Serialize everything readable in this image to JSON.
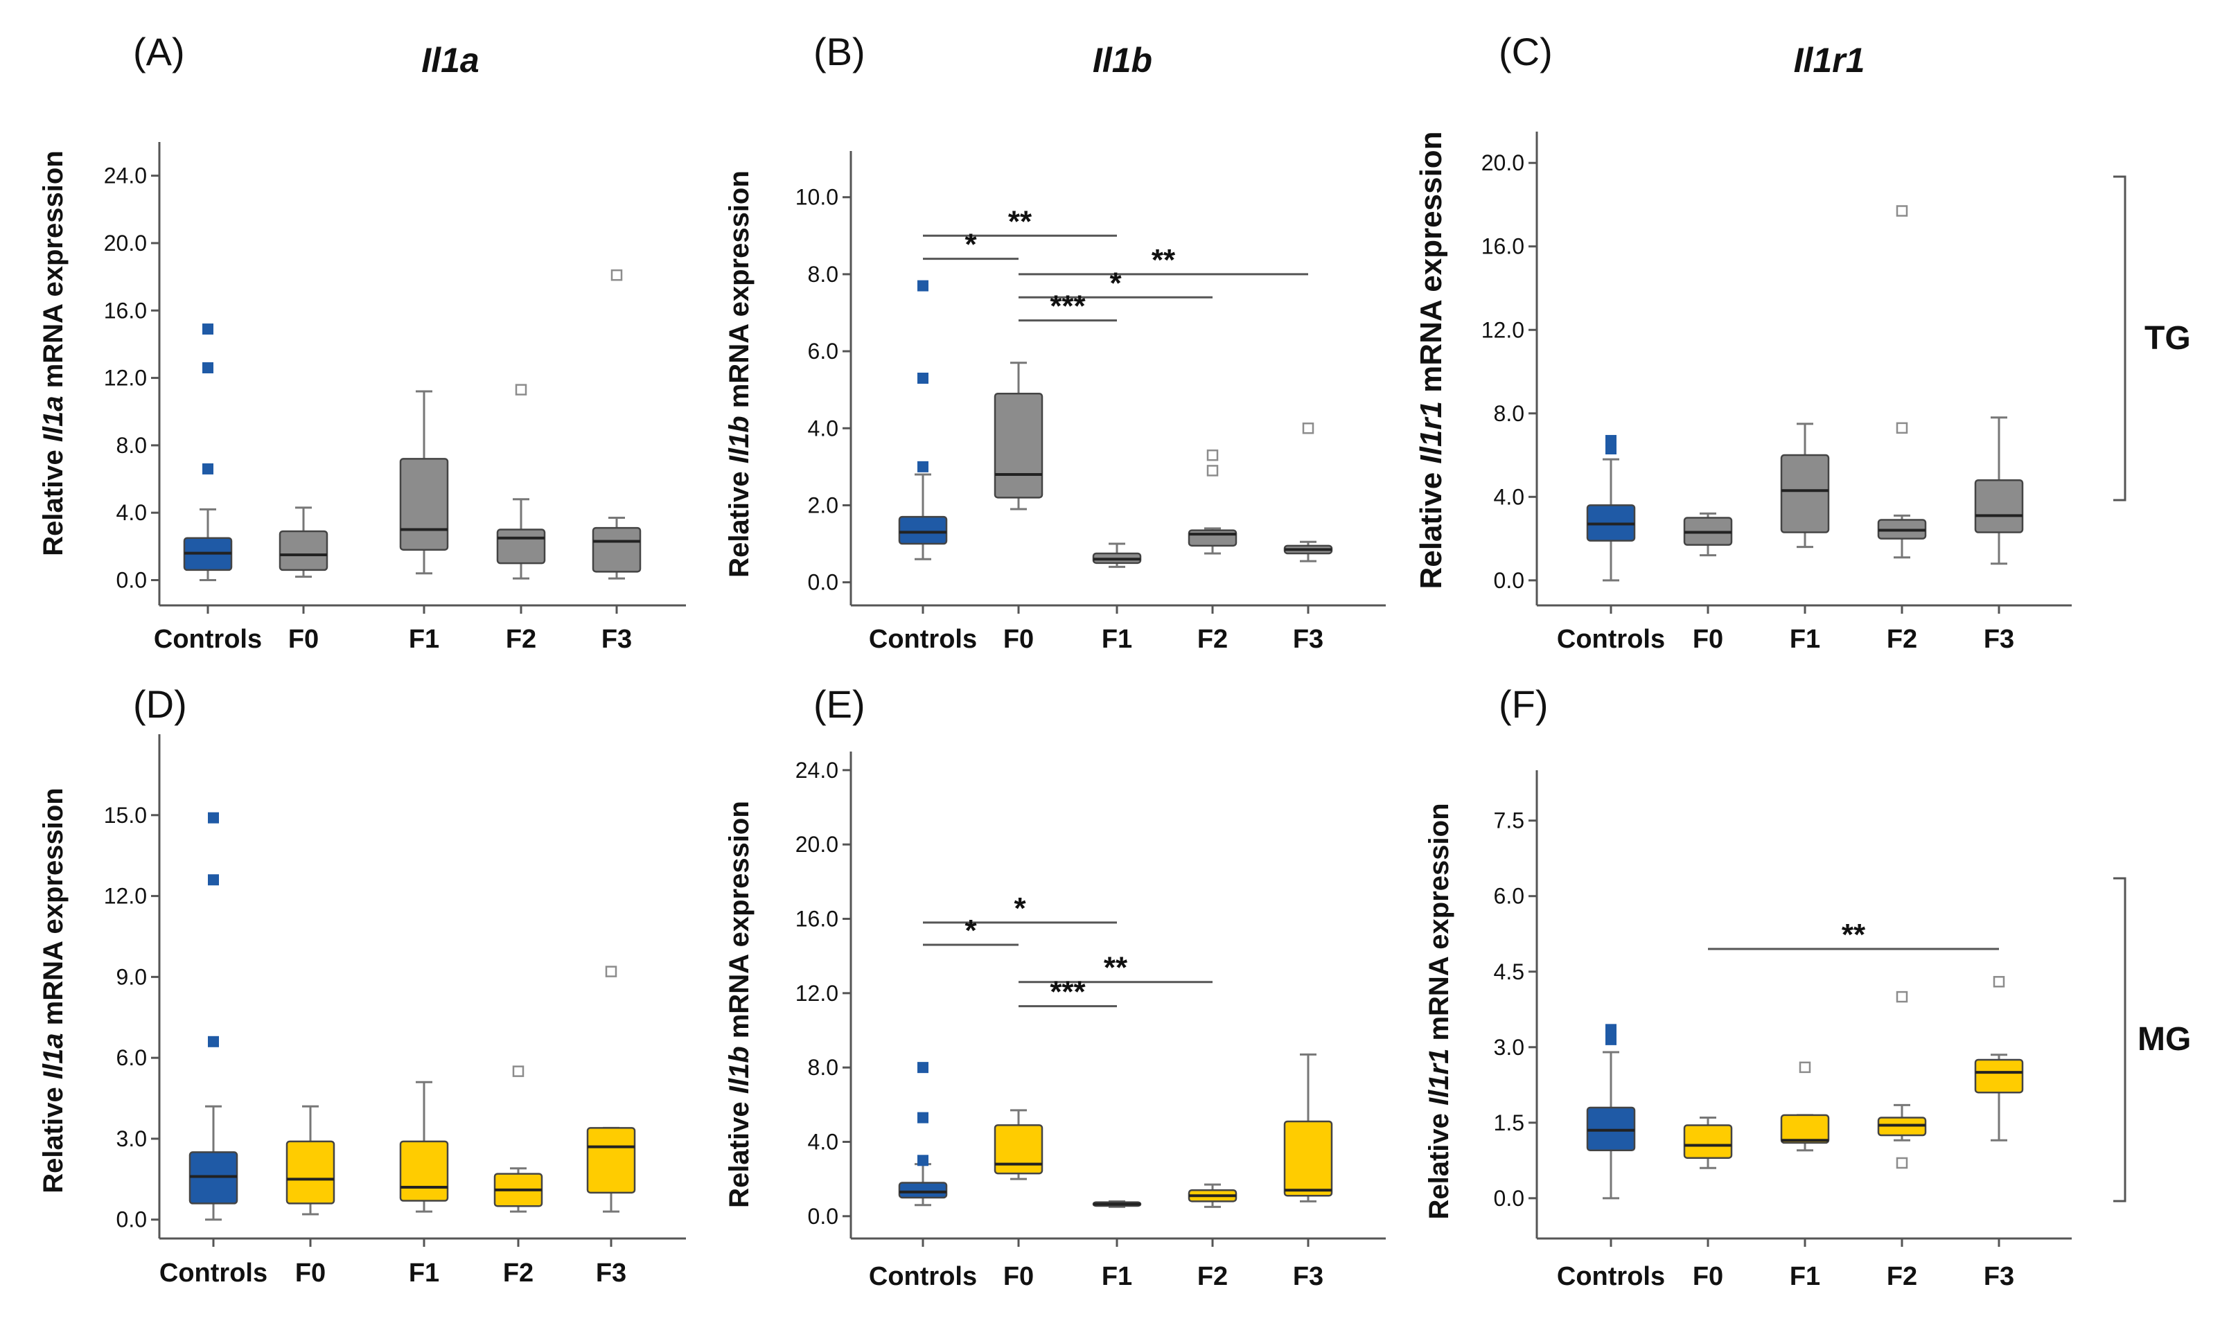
{
  "panels": [
    {
      "label": "(A)",
      "title": "Il1a"
    },
    {
      "label": "(B)",
      "title": "Il1b"
    },
    {
      "label": "(C)",
      "title": "Il1r1"
    },
    {
      "label": "(D)",
      "title": ""
    },
    {
      "label": "(E)",
      "title": ""
    },
    {
      "label": "(F)",
      "title": ""
    }
  ],
  "tissue_labels": {
    "tg": "TG",
    "mg": "MG"
  },
  "colors": {
    "control": "#1f5aa6",
    "tg": "#8c8c8c",
    "mg": "#ffcc00",
    "line": "#555555"
  },
  "chart_data": [
    {
      "type": "boxplot",
      "panel": "A",
      "tissue": "TG",
      "title": "Il1a",
      "ylabel_pre": "Relative ",
      "ylabel_gene": "Il1a",
      "ylabel_post": " mRNA expression",
      "ylim": [
        -1.5,
        26
      ],
      "ticks": [
        0,
        4,
        8,
        12,
        16,
        20,
        24
      ],
      "tick_labels": [
        "0.0",
        "4.0",
        "8.0",
        "12.0",
        "16.0",
        "20.0",
        "24.0"
      ],
      "categories": [
        "Controls",
        "F0",
        "F1",
        "F2",
        "F3"
      ],
      "boxes": [
        {
          "group": "Controls",
          "min": 0,
          "q1": 0.6,
          "median": 1.6,
          "q3": 2.5,
          "max": 4.2,
          "outliers": [
            6.6,
            12.6,
            14.9
          ]
        },
        {
          "group": "F0",
          "min": 0.2,
          "q1": 0.6,
          "median": 1.5,
          "q3": 2.9,
          "max": 4.3,
          "outliers": []
        },
        {
          "group": "F1",
          "min": 0.4,
          "q1": 1.8,
          "median": 3.0,
          "q3": 7.2,
          "max": 11.2,
          "outliers": []
        },
        {
          "group": "F2",
          "min": 0.1,
          "q1": 1.0,
          "median": 2.5,
          "q3": 3.0,
          "max": 4.8,
          "outliers": [
            11.3
          ]
        },
        {
          "group": "F3",
          "min": 0.1,
          "q1": 0.5,
          "median": 2.3,
          "q3": 3.1,
          "max": 3.7,
          "outliers": [
            18.1
          ]
        }
      ],
      "brackets": []
    },
    {
      "type": "boxplot",
      "panel": "B",
      "tissue": "TG",
      "title": "Il1b",
      "ylabel_pre": "Relative ",
      "ylabel_gene": "Il1b",
      "ylabel_post": " mRNA expression",
      "ylim": [
        -0.6,
        11.2
      ],
      "ticks": [
        0,
        2,
        4,
        6,
        8,
        10
      ],
      "tick_labels": [
        "0.0",
        "2.0",
        "4.0",
        "6.0",
        "8.0",
        "10.0"
      ],
      "categories": [
        "Controls",
        "F0",
        "F1",
        "F2",
        "F3"
      ],
      "boxes": [
        {
          "group": "Controls",
          "min": 0.6,
          "q1": 1.0,
          "median": 1.3,
          "q3": 1.7,
          "max": 2.8,
          "outliers": [
            3.0,
            5.3,
            7.7
          ]
        },
        {
          "group": "F0",
          "min": 1.9,
          "q1": 2.2,
          "median": 2.8,
          "q3": 4.9,
          "max": 5.7,
          "outliers": []
        },
        {
          "group": "F1",
          "min": 0.4,
          "q1": 0.5,
          "median": 0.6,
          "q3": 0.75,
          "max": 1.0,
          "outliers": []
        },
        {
          "group": "F2",
          "min": 0.75,
          "q1": 0.95,
          "median": 1.25,
          "q3": 1.35,
          "max": 1.4,
          "outliers": [
            2.9,
            3.3
          ]
        },
        {
          "group": "F3",
          "min": 0.55,
          "q1": 0.75,
          "median": 0.85,
          "q3": 0.95,
          "max": 1.05,
          "outliers": [
            4.0
          ]
        }
      ],
      "brackets": [
        {
          "from": 0,
          "to": 2,
          "y": 9.0,
          "label": "**"
        },
        {
          "from": 0,
          "to": 1,
          "y": 8.4,
          "label": "*"
        },
        {
          "from": 1,
          "to": 4,
          "y": 8.0,
          "label": "**"
        },
        {
          "from": 1,
          "to": 3,
          "y": 7.4,
          "label": "*"
        },
        {
          "from": 1,
          "to": 2,
          "y": 6.8,
          "label": "***"
        }
      ]
    },
    {
      "type": "boxplot",
      "panel": "C",
      "tissue": "TG",
      "title": "Il1r1",
      "ylabel_pre": "Relative ",
      "ylabel_gene": "Il1r1",
      "ylabel_post": " mRNA expression",
      "ylim": [
        -1.2,
        21.5
      ],
      "ticks": [
        0,
        4,
        8,
        12,
        16,
        20
      ],
      "tick_labels": [
        "0.0",
        "4.0",
        "8.0",
        "12.0",
        "16.0",
        "20.0"
      ],
      "categories": [
        "Controls",
        "F0",
        "F1",
        "F2",
        "F3"
      ],
      "boxes": [
        {
          "group": "Controls",
          "min": 0,
          "q1": 1.9,
          "median": 2.7,
          "q3": 3.6,
          "max": 5.8,
          "outliers": [
            6.3,
            6.7
          ]
        },
        {
          "group": "F0",
          "min": 1.2,
          "q1": 1.7,
          "median": 2.3,
          "q3": 3.0,
          "max": 3.2,
          "outliers": []
        },
        {
          "group": "F1",
          "min": 1.6,
          "q1": 2.3,
          "median": 4.3,
          "q3": 6.0,
          "max": 7.5,
          "outliers": []
        },
        {
          "group": "F2",
          "min": 1.1,
          "q1": 2.0,
          "median": 2.4,
          "q3": 2.9,
          "max": 3.1,
          "outliers": [
            7.3,
            17.7
          ]
        },
        {
          "group": "F3",
          "min": 0.8,
          "q1": 2.3,
          "median": 3.1,
          "q3": 4.8,
          "max": 7.8,
          "outliers": []
        }
      ],
      "brackets": []
    },
    {
      "type": "boxplot",
      "panel": "D",
      "tissue": "MG",
      "title": "",
      "ylabel_pre": "Relative ",
      "ylabel_gene": "Il1a",
      "ylabel_post": " mRNA expression",
      "ylim": [
        -0.7,
        18
      ],
      "ticks": [
        0,
        3,
        6,
        9,
        12,
        15
      ],
      "tick_labels": [
        "0.0",
        "3.0",
        "6.0",
        "9.0",
        "12.0",
        "15.0"
      ],
      "categories": [
        "Controls",
        "F0",
        "F1",
        "F2",
        "F3"
      ],
      "boxes": [
        {
          "group": "Controls",
          "min": 0,
          "q1": 0.6,
          "median": 1.6,
          "q3": 2.5,
          "max": 4.2,
          "outliers": [
            6.6,
            12.6,
            14.9
          ]
        },
        {
          "group": "F0",
          "min": 0.2,
          "q1": 0.6,
          "median": 1.5,
          "q3": 2.9,
          "max": 4.2,
          "outliers": []
        },
        {
          "group": "F1",
          "min": 0.3,
          "q1": 0.7,
          "median": 1.2,
          "q3": 2.9,
          "max": 5.1,
          "outliers": []
        },
        {
          "group": "F2",
          "min": 0.3,
          "q1": 0.5,
          "median": 1.1,
          "q3": 1.7,
          "max": 1.9,
          "outliers": [
            5.5
          ]
        },
        {
          "group": "F3",
          "min": 0.3,
          "q1": 1.0,
          "median": 2.7,
          "q3": 3.4,
          "max": 3.4,
          "outliers": [
            9.2
          ]
        }
      ],
      "brackets": []
    },
    {
      "type": "boxplot",
      "panel": "E",
      "tissue": "MG",
      "title": "",
      "ylabel_pre": "Relative ",
      "ylabel_gene": "Il1b",
      "ylabel_post": " mRNA expression",
      "ylim": [
        -1.2,
        25
      ],
      "ticks": [
        0,
        4,
        8,
        12,
        16,
        20,
        24
      ],
      "tick_labels": [
        "0.0",
        "4.0",
        "8.0",
        "12.0",
        "16.0",
        "20.0",
        "24.0"
      ],
      "categories": [
        "Controls",
        "F0",
        "F1",
        "F2",
        "F3"
      ],
      "boxes": [
        {
          "group": "Controls",
          "min": 0.6,
          "q1": 1.0,
          "median": 1.3,
          "q3": 1.8,
          "max": 2.8,
          "outliers": [
            3.0,
            5.3,
            8.0
          ]
        },
        {
          "group": "F0",
          "min": 2.0,
          "q1": 2.3,
          "median": 2.8,
          "q3": 4.9,
          "max": 5.7,
          "outliers": []
        },
        {
          "group": "F1",
          "min": 0.5,
          "q1": 0.55,
          "median": 0.65,
          "q3": 0.75,
          "max": 0.8,
          "outliers": []
        },
        {
          "group": "F2",
          "min": 0.5,
          "q1": 0.8,
          "median": 1.1,
          "q3": 1.4,
          "max": 1.7,
          "outliers": []
        },
        {
          "group": "F3",
          "min": 0.8,
          "q1": 1.1,
          "median": 1.4,
          "q3": 5.1,
          "max": 8.7,
          "outliers": []
        }
      ],
      "brackets": [
        {
          "from": 0,
          "to": 2,
          "y": 15.8,
          "label": "*"
        },
        {
          "from": 0,
          "to": 1,
          "y": 14.6,
          "label": "*"
        },
        {
          "from": 1,
          "to": 3,
          "y": 12.6,
          "label": "**"
        },
        {
          "from": 1,
          "to": 2,
          "y": 11.3,
          "label": "***"
        }
      ]
    },
    {
      "type": "boxplot",
      "panel": "F",
      "tissue": "MG",
      "title": "",
      "ylabel_pre": "Relative ",
      "ylabel_gene": "Il1r1",
      "ylabel_post": " mRNA expression",
      "ylim": [
        -0.8,
        8.5
      ],
      "ticks": [
        0,
        1.5,
        3,
        4.5,
        6,
        7.5
      ],
      "tick_labels": [
        "0.0",
        "1.5",
        "3.0",
        "4.5",
        "6.0",
        "7.5"
      ],
      "categories": [
        "Controls",
        "F0",
        "F1",
        "F2",
        "F3"
      ],
      "boxes": [
        {
          "group": "Controls",
          "min": 0,
          "q1": 0.95,
          "median": 1.35,
          "q3": 1.8,
          "max": 2.9,
          "outliers": [
            3.15,
            3.35
          ]
        },
        {
          "group": "F0",
          "min": 0.6,
          "q1": 0.8,
          "median": 1.05,
          "q3": 1.45,
          "max": 1.6,
          "outliers": []
        },
        {
          "group": "F1",
          "min": 0.95,
          "q1": 1.1,
          "median": 1.15,
          "q3": 1.65,
          "max": 1.65,
          "outliers": [
            2.6
          ]
        },
        {
          "group": "F2",
          "min": 1.15,
          "q1": 1.25,
          "median": 1.45,
          "q3": 1.6,
          "max": 1.85,
          "outliers": [
            0.7,
            4.0
          ]
        },
        {
          "group": "F3",
          "min": 1.15,
          "q1": 2.1,
          "median": 2.5,
          "q3": 2.75,
          "max": 2.85,
          "outliers": [
            4.3
          ]
        }
      ],
      "brackets": [
        {
          "from": 1,
          "to": 4,
          "y": 4.95,
          "label": "**"
        }
      ]
    }
  ]
}
